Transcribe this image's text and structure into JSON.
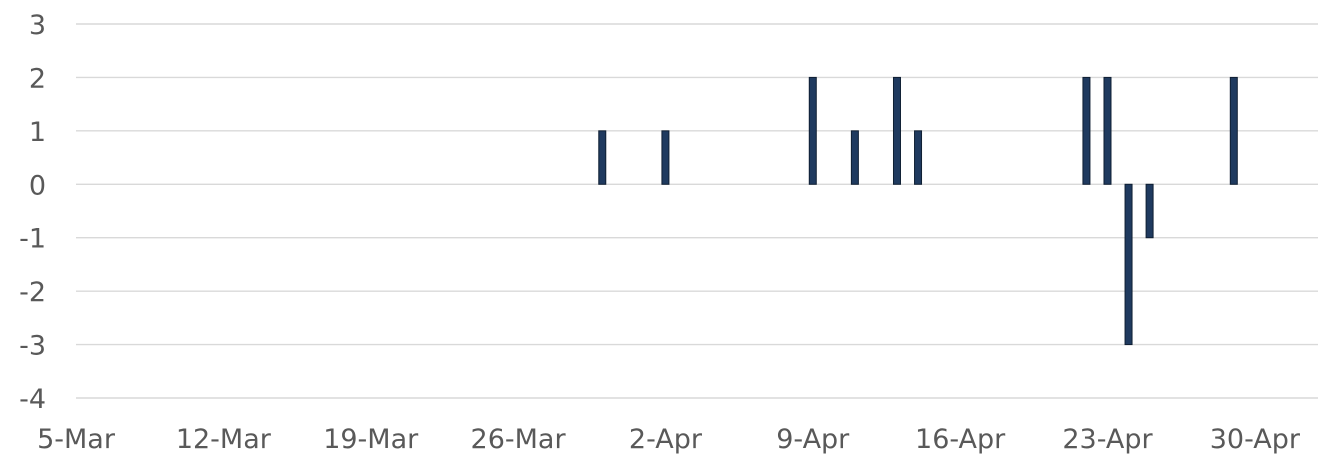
{
  "chart_data": {
    "type": "bar",
    "title": "",
    "xlabel": "",
    "ylabel": "",
    "x_axis_type": "date",
    "xlim": [
      "2024-03-05",
      "2024-05-03"
    ],
    "ylim": [
      -4,
      3
    ],
    "y_ticks": [
      3,
      2,
      1,
      0,
      -1,
      -2,
      -3,
      -4
    ],
    "x_ticks": [
      {
        "date": "2024-03-05",
        "label": "5-Mar"
      },
      {
        "date": "2024-03-12",
        "label": "12-Mar"
      },
      {
        "date": "2024-03-19",
        "label": "19-Mar"
      },
      {
        "date": "2024-03-26",
        "label": "26-Mar"
      },
      {
        "date": "2024-04-02",
        "label": "2-Apr"
      },
      {
        "date": "2024-04-09",
        "label": "9-Apr"
      },
      {
        "date": "2024-04-16",
        "label": "16-Apr"
      },
      {
        "date": "2024-04-23",
        "label": "23-Apr"
      },
      {
        "date": "2024-04-30",
        "label": "30-Apr"
      }
    ],
    "grid": true,
    "legend": "none",
    "colors": {
      "bar": "#1f3a5f",
      "bar_edge": "#0f1f33",
      "grid": "#d9d9d9",
      "text": "#595959"
    },
    "series": [
      {
        "points": [
          {
            "x": "2024-03-30",
            "y": 1
          },
          {
            "x": "2024-04-02",
            "y": 1
          },
          {
            "x": "2024-04-09",
            "y": 2
          },
          {
            "x": "2024-04-11",
            "y": 1
          },
          {
            "x": "2024-04-13",
            "y": 2
          },
          {
            "x": "2024-04-14",
            "y": 1
          },
          {
            "x": "2024-04-22",
            "y": 2
          },
          {
            "x": "2024-04-23",
            "y": 2
          },
          {
            "x": "2024-04-24",
            "y": -3
          },
          {
            "x": "2024-04-25",
            "y": -1
          },
          {
            "x": "2024-04-29",
            "y": 2
          }
        ]
      }
    ]
  }
}
